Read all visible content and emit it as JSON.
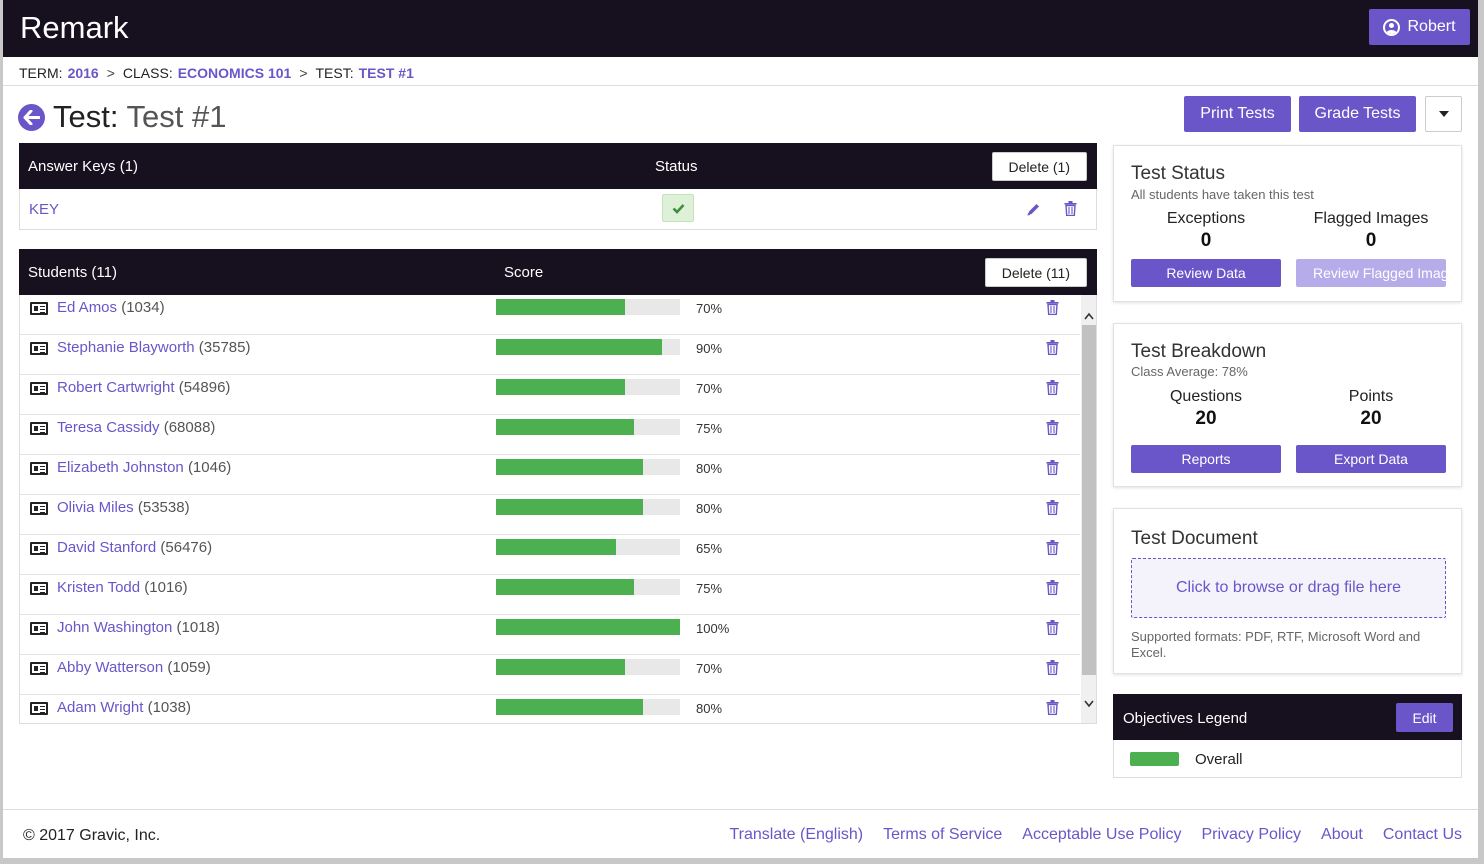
{
  "app": {
    "name": "Remark"
  },
  "user": {
    "name": "Robert",
    "icon": "user-circle-icon"
  },
  "breadcrumb": {
    "term_label": "TERM:",
    "term_value": "2016",
    "class_label": "CLASS:",
    "class_value": "ECONOMICS 101",
    "test_label": "TEST:",
    "test_value": "TEST #1",
    "separator": ">"
  },
  "page": {
    "title_prefix": "Test:",
    "title": "Test #1"
  },
  "actions": {
    "print": "Print Tests",
    "grade": "Grade Tests"
  },
  "answer_keys": {
    "header": "Answer Keys (1)",
    "status_header": "Status",
    "delete_label": "Delete (1)",
    "keys": [
      {
        "name": "KEY",
        "status": "ok"
      }
    ]
  },
  "students": {
    "header": "Students (11)",
    "score_header": "Score",
    "delete_label": "Delete (11)",
    "rows": [
      {
        "name": "Ed Amos",
        "id": "(1034)",
        "score": 70,
        "score_label": "70%"
      },
      {
        "name": "Stephanie Blayworth",
        "id": "(35785)",
        "score": 90,
        "score_label": "90%"
      },
      {
        "name": "Robert Cartwright",
        "id": "(54896)",
        "score": 70,
        "score_label": "70%"
      },
      {
        "name": "Teresa Cassidy",
        "id": "(68088)",
        "score": 75,
        "score_label": "75%"
      },
      {
        "name": "Elizabeth Johnston",
        "id": "(1046)",
        "score": 80,
        "score_label": "80%"
      },
      {
        "name": "Olivia Miles",
        "id": "(53538)",
        "score": 80,
        "score_label": "80%"
      },
      {
        "name": "David Stanford",
        "id": "(56476)",
        "score": 65,
        "score_label": "65%"
      },
      {
        "name": "Kristen Todd",
        "id": "(1016)",
        "score": 75,
        "score_label": "75%"
      },
      {
        "name": "John Washington",
        "id": "(1018)",
        "score": 100,
        "score_label": "100%"
      },
      {
        "name": "Abby Watterson",
        "id": "(1059)",
        "score": 70,
        "score_label": "70%"
      },
      {
        "name": "Adam Wright",
        "id": "(1038)",
        "score": 80,
        "score_label": "80%"
      }
    ]
  },
  "test_status": {
    "title": "Test Status",
    "subtitle": "All students have taken this test",
    "exceptions_label": "Exceptions",
    "exceptions_value": "0",
    "flagged_label": "Flagged Images",
    "flagged_value": "0",
    "review_data": "Review Data",
    "review_flagged": "Review Flagged Imag"
  },
  "test_breakdown": {
    "title": "Test Breakdown",
    "subtitle": "Class Average: 78%",
    "questions_label": "Questions",
    "questions_value": "20",
    "points_label": "Points",
    "points_value": "20",
    "reports": "Reports",
    "export": "Export Data"
  },
  "test_document": {
    "title": "Test Document",
    "dropzone": "Click to browse or drag file here",
    "formats": "Supported formats: PDF, RTF, Microsoft Word and Excel."
  },
  "objectives": {
    "title": "Objectives Legend",
    "edit": "Edit",
    "items": [
      {
        "label": "Overall"
      }
    ]
  },
  "footer": {
    "copyright": "© 2017 Gravic, Inc.",
    "links": [
      "Translate (English)",
      "Terms of Service",
      "Acceptable Use Policy",
      "Privacy Policy",
      "About",
      "Contact Us"
    ]
  },
  "colors": {
    "accent": "#6a56c8",
    "dark": "#16101f",
    "bar": "#4caf50",
    "bar_track": "#e8e8e8"
  }
}
